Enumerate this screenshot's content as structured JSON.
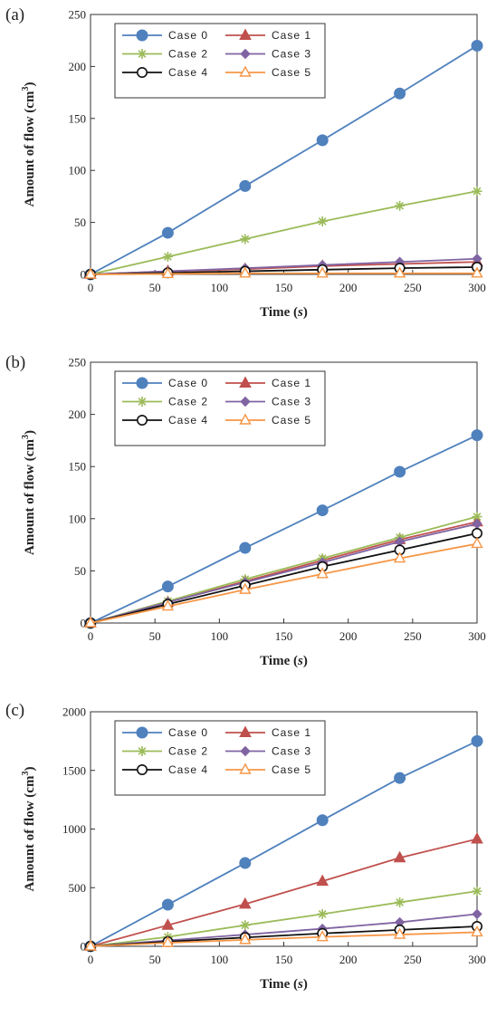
{
  "chart_data": [
    {
      "panel": "(a)",
      "type": "line",
      "xlabel": "Time",
      "xlabel_unit": "s",
      "ylabel": "Amount of flow (cm",
      "ylabel_sup": "3",
      "ylabel_end": ")",
      "xlim": [
        0,
        300
      ],
      "ylim": [
        0,
        250
      ],
      "xticks": [
        0,
        50,
        100,
        150,
        200,
        250,
        300
      ],
      "yticks": [
        0,
        50,
        100,
        150,
        200,
        250
      ],
      "x": [
        0,
        60,
        120,
        180,
        240,
        300
      ],
      "grid": false,
      "legend_position": "top-left",
      "series": [
        {
          "name": "Case 0",
          "marker": "circle",
          "color": "#4f81bd",
          "values": [
            0,
            40,
            85,
            129,
            174,
            220
          ]
        },
        {
          "name": "Case 1",
          "marker": "triangle",
          "color": "#c0504d",
          "values": [
            0,
            3,
            5,
            8,
            10,
            12
          ]
        },
        {
          "name": "Case 2",
          "marker": "star",
          "color": "#9bbb59",
          "values": [
            0,
            17,
            34,
            51,
            66,
            80
          ]
        },
        {
          "name": "Case 3",
          "marker": "diamond",
          "color": "#8064a2",
          "values": [
            0,
            3,
            6,
            9,
            12,
            15
          ]
        },
        {
          "name": "Case 4",
          "marker": "open-circle",
          "color": "#111111",
          "values": [
            0,
            1.5,
            3,
            4.5,
            6,
            7
          ]
        },
        {
          "name": "Case 5",
          "marker": "open-triangle",
          "color": "#f79646",
          "values": [
            0,
            0.5,
            1,
            1,
            1,
            1
          ]
        }
      ]
    },
    {
      "panel": "(b)",
      "type": "line",
      "xlabel": "Time",
      "xlabel_unit": "s",
      "ylabel": "Amount of flow (cm",
      "ylabel_sup": "3",
      "ylabel_end": ")",
      "xlim": [
        0,
        300
      ],
      "ylim": [
        0,
        250
      ],
      "xticks": [
        0,
        50,
        100,
        150,
        200,
        250,
        300
      ],
      "yticks": [
        0,
        50,
        100,
        150,
        200,
        250
      ],
      "x": [
        0,
        60,
        120,
        180,
        240,
        300
      ],
      "grid": false,
      "legend_position": "top-left",
      "series": [
        {
          "name": "Case 0",
          "marker": "circle",
          "color": "#4f81bd",
          "values": [
            0,
            35,
            72,
            108,
            145,
            180
          ]
        },
        {
          "name": "Case 1",
          "marker": "triangle",
          "color": "#c0504d",
          "values": [
            0,
            20,
            40,
            60,
            80,
            97
          ]
        },
        {
          "name": "Case 2",
          "marker": "star",
          "color": "#9bbb59",
          "values": [
            0,
            21,
            42,
            62,
            82,
            102
          ]
        },
        {
          "name": "Case 3",
          "marker": "diamond",
          "color": "#8064a2",
          "values": [
            0,
            20,
            39,
            58,
            78,
            95
          ]
        },
        {
          "name": "Case 4",
          "marker": "open-circle",
          "color": "#111111",
          "values": [
            0,
            18,
            36,
            54,
            70,
            86
          ]
        },
        {
          "name": "Case 5",
          "marker": "open-triangle",
          "color": "#f79646",
          "values": [
            0,
            16,
            32,
            47,
            62,
            76
          ]
        }
      ]
    },
    {
      "panel": "(c)",
      "type": "line",
      "xlabel": "Time",
      "xlabel_unit": "s",
      "ylabel": "Amount of flow (cm",
      "ylabel_sup": "3",
      "ylabel_end": ")",
      "xlim": [
        0,
        300
      ],
      "ylim": [
        0,
        2000
      ],
      "xticks": [
        0,
        50,
        100,
        150,
        200,
        250,
        300
      ],
      "yticks": [
        0,
        500,
        1000,
        1500,
        2000
      ],
      "x": [
        0,
        60,
        120,
        180,
        240,
        300
      ],
      "grid": false,
      "legend_position": "top-left",
      "series": [
        {
          "name": "Case 0",
          "marker": "circle",
          "color": "#4f81bd",
          "values": [
            0,
            355,
            710,
            1075,
            1435,
            1750
          ]
        },
        {
          "name": "Case 1",
          "marker": "triangle",
          "color": "#c0504d",
          "values": [
            0,
            180,
            360,
            555,
            755,
            915
          ]
        },
        {
          "name": "Case 2",
          "marker": "star",
          "color": "#9bbb59",
          "values": [
            0,
            80,
            180,
            275,
            375,
            470
          ]
        },
        {
          "name": "Case 3",
          "marker": "diamond",
          "color": "#8064a2",
          "values": [
            0,
            50,
            100,
            150,
            205,
            275
          ]
        },
        {
          "name": "Case 4",
          "marker": "open-circle",
          "color": "#111111",
          "values": [
            0,
            40,
            75,
            110,
            140,
            170
          ]
        },
        {
          "name": "Case 5",
          "marker": "open-triangle",
          "color": "#f79646",
          "values": [
            0,
            30,
            55,
            80,
            100,
            120
          ]
        }
      ]
    }
  ]
}
